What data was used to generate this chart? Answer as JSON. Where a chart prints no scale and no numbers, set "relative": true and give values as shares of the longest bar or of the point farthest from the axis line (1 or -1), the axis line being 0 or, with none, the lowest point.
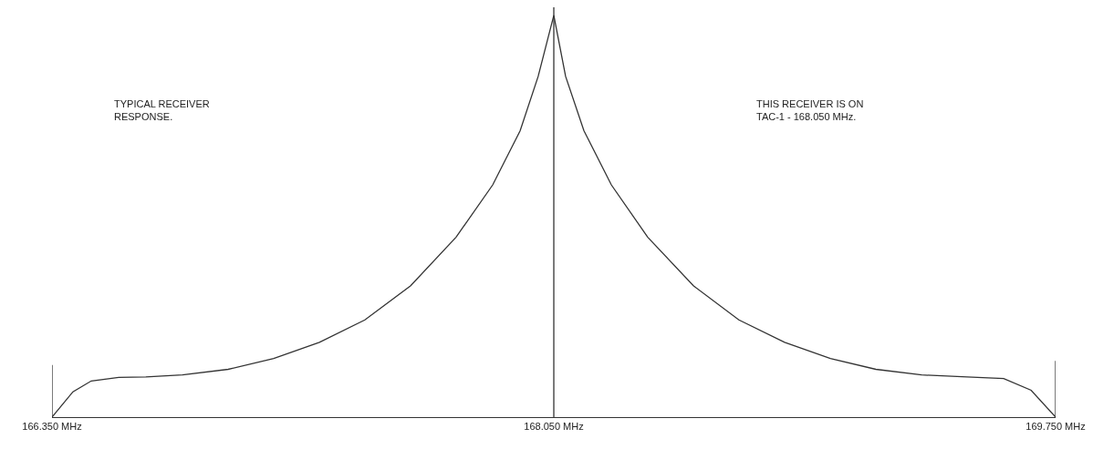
{
  "chart_data": {
    "type": "line",
    "relative": true,
    "tick_labels": "x",
    "marker": "none",
    "line_style": "solid",
    "xlim": [
      166.35,
      169.75
    ],
    "xticks": [
      {
        "value": 166.35,
        "label": "166.350 MHz"
      },
      {
        "value": 168.05,
        "label": "168.050 MHz"
      },
      {
        "value": 169.75,
        "label": "169.750 MHz"
      }
    ],
    "annotations": [
      "TYPICAL RECEIVER\nRESPONSE.",
      "THIS RECEIVER IS ON\nTAC-1 - 168.050 MHz."
    ],
    "ref_lines": [
      {
        "axis": "x",
        "value": 168.05,
        "color": "#333333"
      }
    ],
    "series": [
      {
        "color": "#333333",
        "x": [
          166.35,
          166.421,
          166.483,
          166.576,
          166.668,
          166.792,
          166.947,
          167.101,
          167.256,
          167.41,
          167.565,
          167.719,
          167.843,
          167.936,
          167.997,
          168.05,
          168.09,
          168.152,
          168.245,
          168.368,
          168.523,
          168.677,
          168.832,
          168.987,
          169.141,
          169.296,
          169.45,
          169.574,
          169.667,
          169.75
        ],
        "values": [
          0,
          0.063,
          0.09,
          0.099,
          0.1,
          0.105,
          0.119,
          0.146,
          0.186,
          0.242,
          0.327,
          0.448,
          0.578,
          0.713,
          0.848,
          1,
          0.848,
          0.713,
          0.578,
          0.448,
          0.327,
          0.242,
          0.186,
          0.146,
          0.119,
          0.105,
          0.1,
          0.096,
          0.067,
          0
        ]
      },
      {
        "color": "#333333",
        "x": [
          166.35,
          166.35
        ],
        "values": [
          0,
          0.13
        ]
      },
      {
        "color": "#333333",
        "x": [
          169.75,
          169.75
        ],
        "values": [
          0,
          0.14
        ]
      }
    ]
  }
}
